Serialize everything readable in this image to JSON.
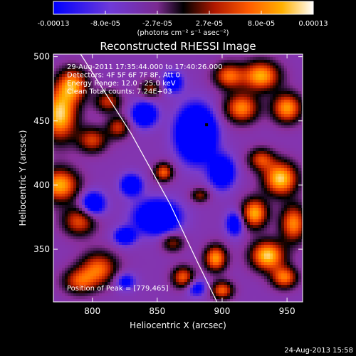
{
  "colorbar": {
    "tick_labels": [
      "-0.00013",
      "-8.0e-05",
      "-2.7e-05",
      "2.7e-05",
      "8.0e-05",
      "0.00013"
    ],
    "unit_label": "(photons cm⁻² s⁻¹ asec⁻²)"
  },
  "footer_timestamp": "24-Aug-2013 15:58",
  "chart_data": {
    "type": "heatmap",
    "title": "Reconstructed RHESSI Image",
    "xlabel": "Heliocentric X (arcsec)",
    "ylabel": "Heliocentric Y (arcsec)",
    "xlim": [
      770,
      962
    ],
    "ylim": [
      309,
      502
    ],
    "x_ticks": [
      800,
      850,
      900,
      950
    ],
    "y_ticks": [
      350,
      400,
      450,
      500
    ],
    "x_tick_labels": [
      "800",
      "850",
      "900",
      "950"
    ],
    "y_tick_labels": [
      "350",
      "400",
      "450",
      "500"
    ],
    "info_lines": [
      "29-Aug-2011 17:35:44.000 to 17:40:26.000",
      "Detectors: 4F 5F 6F 7F 8F, Att 0",
      "Energy Range: 12.0 - 25.0 keV",
      "Clean    Total counts: 7.24E+03"
    ],
    "peak_label": "Position of Peak = [779,465]",
    "value_range": [
      -0.00013,
      0.00013
    ],
    "colormap": [
      "#0000ff",
      "#7a3ccc",
      "#8a2f9c",
      "#000000",
      "#b01800",
      "#ff5a00",
      "#ffb000",
      "#ffffff"
    ],
    "limb_line": [
      [
        791,
        502
      ],
      [
        830,
        440
      ],
      [
        860,
        385
      ],
      [
        881,
        340
      ],
      [
        896,
        309
      ]
    ],
    "marker": [
      888,
      447
    ],
    "blobs": [
      {
        "x": 775,
        "y": 455,
        "sx": 9,
        "sy": 14,
        "v": 1.0
      },
      {
        "x": 785,
        "y": 478,
        "sx": 8,
        "sy": 9,
        "v": 0.8
      },
      {
        "x": 775,
        "y": 400,
        "sx": 10,
        "sy": 9,
        "v": 0.9
      },
      {
        "x": 790,
        "y": 372,
        "sx": 9,
        "sy": 8,
        "v": 0.65
      },
      {
        "x": 800,
        "y": 435,
        "sx": 8,
        "sy": 7,
        "v": 0.6
      },
      {
        "x": 805,
        "y": 335,
        "sx": 10,
        "sy": 9,
        "v": 0.7
      },
      {
        "x": 790,
        "y": 325,
        "sx": 9,
        "sy": 7,
        "v": 0.6
      },
      {
        "x": 812,
        "y": 465,
        "sx": 7,
        "sy": 6,
        "v": 0.55
      },
      {
        "x": 820,
        "y": 445,
        "sx": 6,
        "sy": 6,
        "v": 0.55
      },
      {
        "x": 845,
        "y": 475,
        "sx": 6,
        "sy": 5,
        "v": 0.45
      },
      {
        "x": 855,
        "y": 410,
        "sx": 5,
        "sy": 5,
        "v": 0.7
      },
      {
        "x": 862,
        "y": 355,
        "sx": 6,
        "sy": 5,
        "v": 0.45
      },
      {
        "x": 870,
        "y": 328,
        "sx": 6,
        "sy": 6,
        "v": 0.7
      },
      {
        "x": 883,
        "y": 392,
        "sx": 5,
        "sy": 4,
        "v": 0.45
      },
      {
        "x": 895,
        "y": 343,
        "sx": 6,
        "sy": 7,
        "v": 0.85
      },
      {
        "x": 900,
        "y": 318,
        "sx": 6,
        "sy": 5,
        "v": 0.7
      },
      {
        "x": 905,
        "y": 485,
        "sx": 8,
        "sy": 7,
        "v": 0.7
      },
      {
        "x": 930,
        "y": 485,
        "sx": 10,
        "sy": 8,
        "v": 0.9
      },
      {
        "x": 915,
        "y": 460,
        "sx": 9,
        "sy": 8,
        "v": 0.8
      },
      {
        "x": 950,
        "y": 460,
        "sx": 8,
        "sy": 8,
        "v": 0.85
      },
      {
        "x": 930,
        "y": 420,
        "sx": 7,
        "sy": 6,
        "v": 0.6
      },
      {
        "x": 945,
        "y": 405,
        "sx": 9,
        "sy": 9,
        "v": 1.0
      },
      {
        "x": 955,
        "y": 370,
        "sx": 7,
        "sy": 10,
        "v": 0.8
      },
      {
        "x": 925,
        "y": 378,
        "sx": 7,
        "sy": 8,
        "v": 0.9
      },
      {
        "x": 935,
        "y": 345,
        "sx": 9,
        "sy": 8,
        "v": 1.0
      },
      {
        "x": 948,
        "y": 328,
        "sx": 7,
        "sy": 6,
        "v": 0.75
      },
      {
        "x": 880,
        "y": 440,
        "sx": 10,
        "sy": 14,
        "v": -1.0
      },
      {
        "x": 840,
        "y": 455,
        "sx": 7,
        "sy": 7,
        "v": -0.6
      },
      {
        "x": 850,
        "y": 375,
        "sx": 12,
        "sy": 9,
        "v": -0.75
      },
      {
        "x": 800,
        "y": 385,
        "sx": 7,
        "sy": 7,
        "v": -0.6
      },
      {
        "x": 830,
        "y": 400,
        "sx": 6,
        "sy": 6,
        "v": -0.55
      },
      {
        "x": 900,
        "y": 410,
        "sx": 7,
        "sy": 9,
        "v": -0.6
      },
      {
        "x": 910,
        "y": 370,
        "sx": 5,
        "sy": 7,
        "v": -0.5
      },
      {
        "x": 862,
        "y": 480,
        "sx": 6,
        "sy": 6,
        "v": -0.45
      },
      {
        "x": 825,
        "y": 360,
        "sx": 6,
        "sy": 5,
        "v": -0.5
      },
      {
        "x": 880,
        "y": 320,
        "sx": 6,
        "sy": 5,
        "v": -0.4
      },
      {
        "x": 825,
        "y": 325,
        "sx": 6,
        "sy": 5,
        "v": -0.4
      }
    ]
  }
}
